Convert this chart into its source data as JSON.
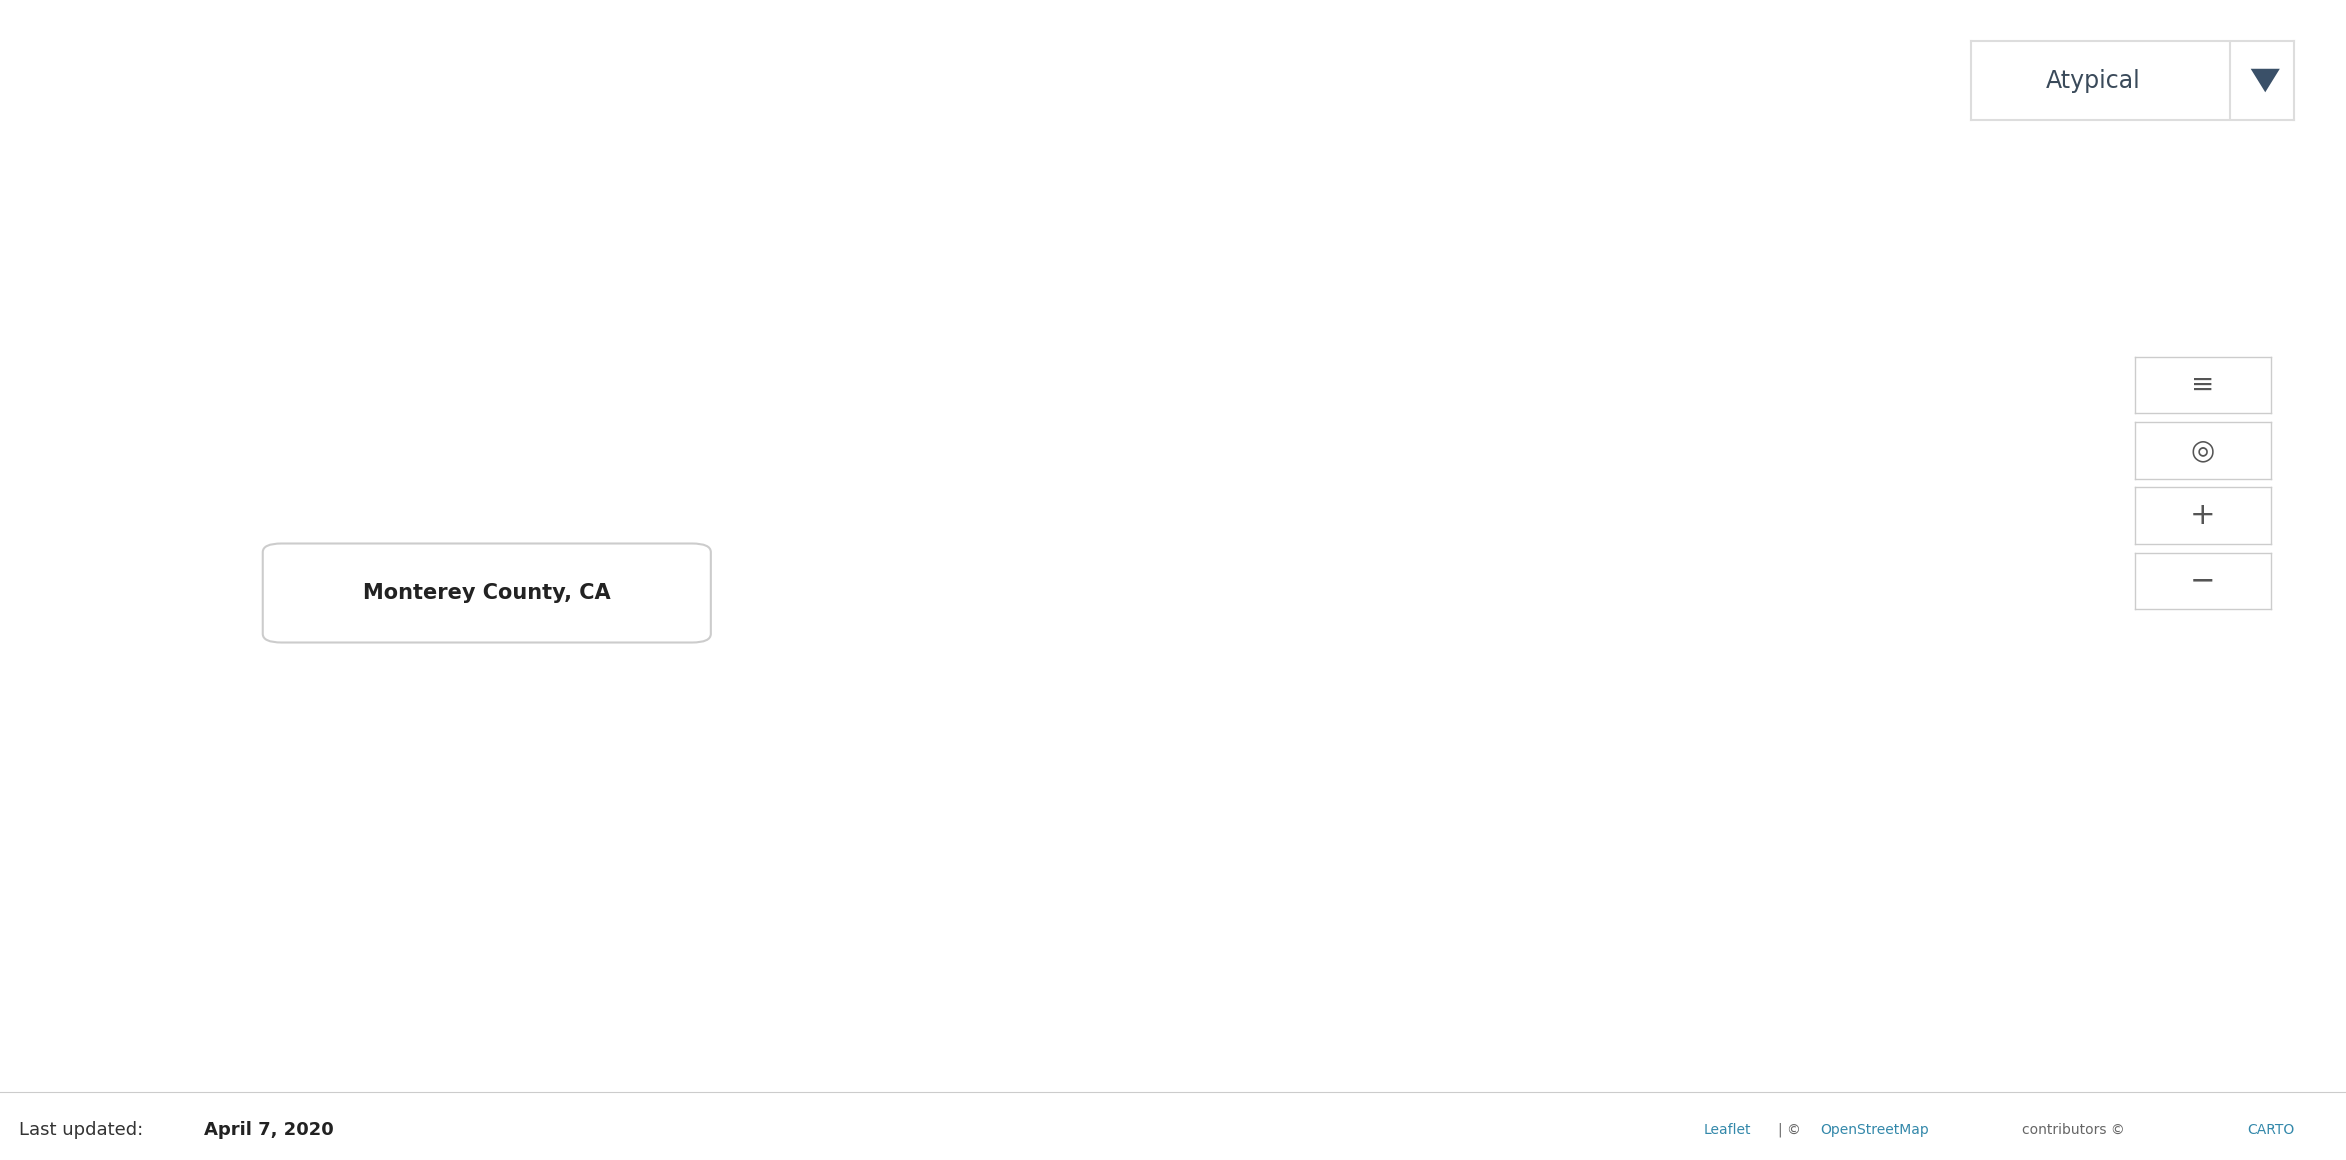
{
  "bg_color": "#c8cdd4",
  "water_color": "#cdd2d8",
  "land_color": "#b8bec8",
  "county_base_color": "#9196a0",
  "tooltip_text": "Monterey County, CA",
  "dropdown_label": "Atypical",
  "last_updated_plain": "Last updated: ",
  "last_updated_bold": "April 7, 2020",
  "bottom_bar_color": "#f5f5f5",
  "white_bar_color": "#ffffff",
  "colors_light_orange": "#f5c98a",
  "colors_orange": "#f0a050",
  "colors_dark_orange": "#e07030",
  "colors_red": "#cc3333",
  "colors_dark_red": "#8b1a1a",
  "colors_brown_gray": "#8a7060",
  "colors_dark_brown": "#5a4030",
  "county_gray": "#8f94a0",
  "state_line_color": "#ffffff",
  "county_line_color": "#c0c5cc",
  "dropdown_text_color": "#3a4a5a",
  "dropdown_arrow_color": "#3a5068",
  "ctrl_icon_color": "#555555",
  "leaflet_color": "#3388aa",
  "osm_color": "#3388aa",
  "carto_color": "#3388aa",
  "attr_color": "#666666",
  "weights": [
    0.18,
    0.12,
    0.06,
    0.03,
    0.07,
    0.04,
    0.03,
    0.47
  ],
  "figsize": [
    23.46,
    11.6
  ],
  "dpi": 100
}
